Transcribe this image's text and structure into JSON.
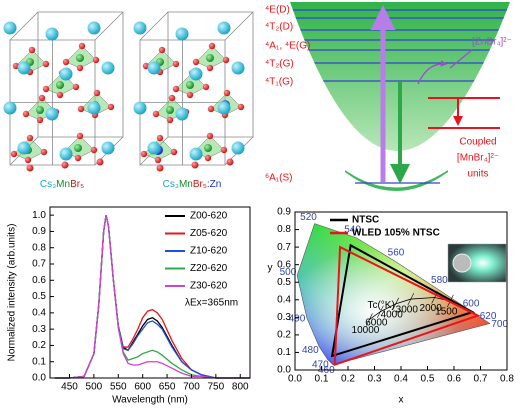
{
  "structures": {
    "labels": [
      [
        "Cs₃",
        "Mn",
        "Br₅"
      ],
      [
        "Cs₃",
        "Mn",
        "Br₅",
        ":Zn"
      ]
    ]
  },
  "energy_diagram": {
    "levels": [
      "⁴E(D)",
      "⁴T₂(D)",
      "⁴A₁, ⁴E(G)",
      "⁴T₂(G)",
      "⁴T₁(G)"
    ],
    "ground": "⁶A₁(S)",
    "zn_label": "[ZnBr₄]²⁻",
    "coupled_label": [
      "Coupled",
      "[MnBr₄]²⁻",
      "units"
    ]
  },
  "chart_data": [
    {
      "type": "line",
      "xlabel": "Wavelength (nm)",
      "ylabel": "Normalized intensity (arb.units)",
      "annotation": "λEx=365nm",
      "x": [
        420,
        450,
        480,
        500,
        510,
        520,
        525,
        530,
        540,
        550,
        560,
        570,
        580,
        590,
        600,
        610,
        620,
        630,
        640,
        660,
        680,
        700,
        720,
        750,
        780,
        820
      ],
      "series": [
        {
          "name": "Z00-620",
          "color": "#000000",
          "values": [
            0,
            0,
            0.01,
            0.15,
            0.45,
            0.9,
            1.0,
            0.93,
            0.6,
            0.32,
            0.19,
            0.17,
            0.22,
            0.27,
            0.32,
            0.36,
            0.37,
            0.35,
            0.31,
            0.2,
            0.1,
            0.05,
            0.02,
            0,
            0,
            0
          ]
        },
        {
          "name": "Z05-620",
          "color": "#e8141b",
          "values": [
            0,
            0,
            0.01,
            0.15,
            0.45,
            0.9,
            1.0,
            0.93,
            0.6,
            0.32,
            0.19,
            0.19,
            0.24,
            0.3,
            0.37,
            0.41,
            0.42,
            0.4,
            0.36,
            0.23,
            0.12,
            0.05,
            0.02,
            0,
            0,
            0
          ]
        },
        {
          "name": "Z10-620",
          "color": "#1f4fd8",
          "values": [
            0,
            0,
            0.01,
            0.15,
            0.45,
            0.9,
            1.0,
            0.93,
            0.6,
            0.32,
            0.18,
            0.17,
            0.21,
            0.26,
            0.3,
            0.34,
            0.35,
            0.33,
            0.3,
            0.19,
            0.1,
            0.05,
            0.02,
            0,
            0,
            0
          ]
        },
        {
          "name": "Z20-620",
          "color": "#2ca84a",
          "values": [
            0,
            0,
            0.01,
            0.15,
            0.45,
            0.9,
            1.0,
            0.93,
            0.6,
            0.31,
            0.16,
            0.11,
            0.12,
            0.13,
            0.15,
            0.16,
            0.17,
            0.16,
            0.14,
            0.09,
            0.05,
            0.02,
            0.01,
            0,
            0,
            0
          ]
        },
        {
          "name": "Z30-620",
          "color": "#cc44cc",
          "values": [
            0,
            0,
            0.01,
            0.15,
            0.45,
            0.9,
            1.0,
            0.93,
            0.6,
            0.31,
            0.15,
            0.09,
            0.08,
            0.08,
            0.09,
            0.1,
            0.1,
            0.1,
            0.09,
            0.06,
            0.03,
            0.01,
            0.01,
            0,
            0,
            0
          ]
        }
      ],
      "xlim": [
        410,
        820
      ],
      "ylim": [
        0,
        1.05
      ],
      "xticks": [
        450,
        500,
        550,
        600,
        650,
        700,
        750,
        800
      ],
      "yticks": [
        {
          "value": 0,
          "label": "0.0"
        },
        {
          "value": 0.1,
          "label": "0.1"
        },
        {
          "value": 0.2,
          "label": "0.2"
        },
        {
          "value": 0.3,
          "label": "0.3"
        },
        {
          "value": 0.4,
          "label": "0.4"
        },
        {
          "value": 0.5,
          "label": "0.5"
        },
        {
          "value": 0.6,
          "label": "0.6"
        },
        {
          "value": 0.7,
          "label": "0.7"
        },
        {
          "value": 0.8,
          "label": "0.8"
        },
        {
          "value": 0.9,
          "label": "0.9"
        },
        {
          "value": 1,
          "label": "1.0"
        }
      ],
      "legend": "upper right"
    },
    {
      "type": "cie",
      "xlabel": "x",
      "ylabel": "y",
      "xlim": [
        0,
        0.8
      ],
      "ylim": [
        0,
        0.9
      ],
      "xticks": [
        {
          "value": 0,
          "label": "0.0"
        },
        0.1,
        0.2,
        0.3,
        0.4,
        0.5,
        0.6,
        0.7,
        0.8
      ],
      "yticks": [
        {
          "value": 0,
          "label": "0.0"
        },
        0.1,
        0.2,
        0.3,
        0.4,
        0.5,
        0.6,
        0.7,
        0.8,
        0.9
      ],
      "series": [
        {
          "name": "NTSC",
          "color": "#000000",
          "x": [
            0.67,
            0.21,
            0.14
          ],
          "y": [
            0.33,
            0.71,
            0.08
          ]
        },
        {
          "name": "WLED 105% NTSC",
          "color": "#e8141b",
          "x": [
            0.69,
            0.17,
            0.15
          ],
          "y": [
            0.31,
            0.7,
            0.03
          ]
        }
      ],
      "locus": {
        "wavelengths": [
          460,
          470,
          480,
          490,
          500,
          520,
          540,
          560,
          580,
          600,
          620,
          700
        ],
        "x": [
          0.144,
          0.124,
          0.091,
          0.045,
          0.008,
          0.074,
          0.23,
          0.373,
          0.512,
          0.627,
          0.691,
          0.735
        ],
        "y": [
          0.03,
          0.058,
          0.133,
          0.295,
          0.538,
          0.834,
          0.754,
          0.624,
          0.487,
          0.373,
          0.308,
          0.265
        ]
      },
      "planckian": {
        "label": "Tc(°K)",
        "temperatures": [
          10000,
          6000,
          4000,
          3000,
          2000,
          1500
        ],
        "x": [
          0.281,
          0.322,
          0.38,
          0.437,
          0.527,
          0.586
        ],
        "y": [
          0.288,
          0.332,
          0.377,
          0.404,
          0.413,
          0.393
        ]
      },
      "legend": "upper left"
    }
  ]
}
